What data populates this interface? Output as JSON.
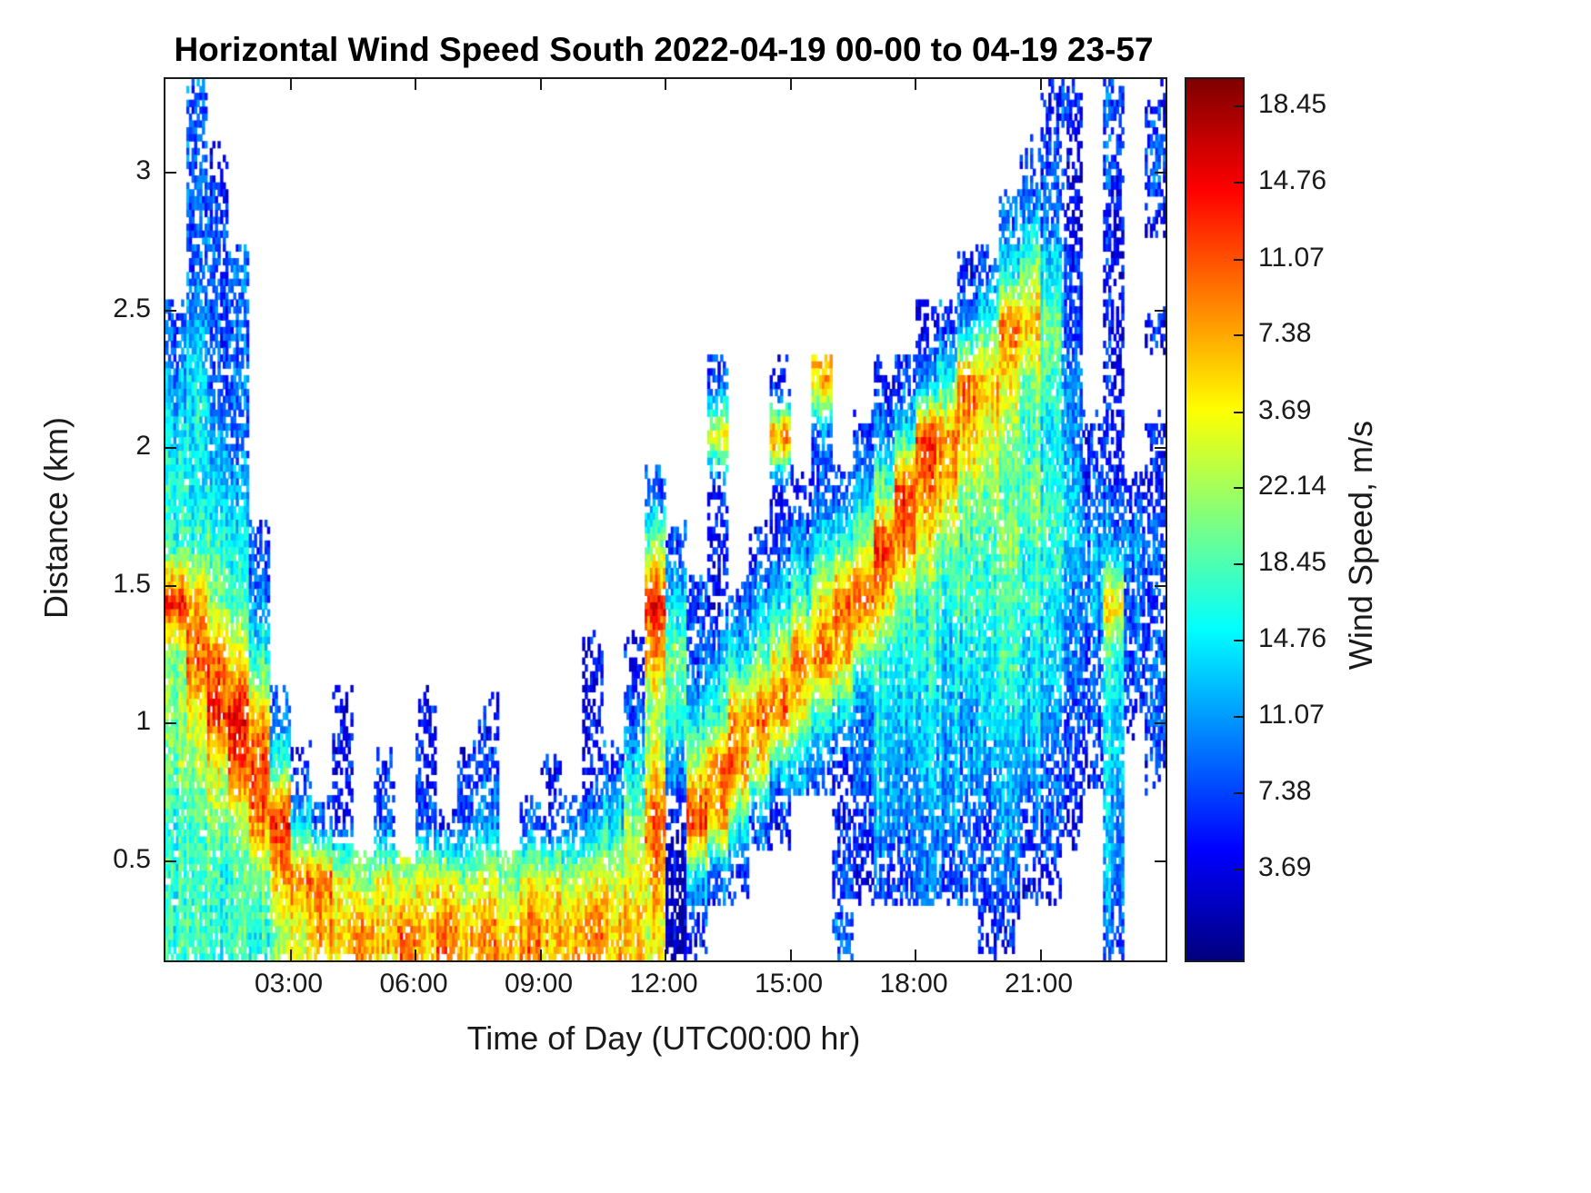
{
  "title": "Horizontal Wind Speed South 2022-04-19 00-00 to 04-19 23-57",
  "axes": {
    "xlabel": "Time of Day (UTC00:00 hr)",
    "ylabel": "Distance (km)",
    "x_range_hours": [
      0,
      24
    ],
    "y_range_km": [
      0.14,
      3.34
    ],
    "x_ticks": [
      {
        "label": "03:00",
        "hour": 3
      },
      {
        "label": "06:00",
        "hour": 6
      },
      {
        "label": "09:00",
        "hour": 9
      },
      {
        "label": "12:00",
        "hour": 12
      },
      {
        "label": "15:00",
        "hour": 15
      },
      {
        "label": "18:00",
        "hour": 18
      },
      {
        "label": "21:00",
        "hour": 21
      }
    ],
    "y_ticks": [
      {
        "label": "3",
        "km": 3
      },
      {
        "label": "2.5",
        "km": 2.5
      },
      {
        "label": "2",
        "km": 2
      },
      {
        "label": "1.5",
        "km": 1.5
      },
      {
        "label": "1",
        "km": 1
      },
      {
        "label": "0.5",
        "km": 0.5
      }
    ]
  },
  "colorbar": {
    "label": "Wind Speed, m/s",
    "colormap": "jet",
    "ticks_top_to_bottom": [
      {
        "label": "18.45",
        "frac_from_bottom": 0.969
      },
      {
        "label": "14.76",
        "frac_from_bottom": 0.882
      },
      {
        "label": "11.07",
        "frac_from_bottom": 0.795
      },
      {
        "label": "7.38",
        "frac_from_bottom": 0.709
      },
      {
        "label": "3.69",
        "frac_from_bottom": 0.622
      },
      {
        "label": "22.14",
        "frac_from_bottom": 0.536
      },
      {
        "label": "18.45",
        "frac_from_bottom": 0.449
      },
      {
        "label": "14.76",
        "frac_from_bottom": 0.363
      },
      {
        "label": "11.07",
        "frac_from_bottom": 0.276
      },
      {
        "label": "7.38",
        "frac_from_bottom": 0.19
      },
      {
        "label": "3.69",
        "frac_from_bottom": 0.103
      }
    ]
  },
  "chart_data": {
    "type": "heatmap",
    "title": "Horizontal Wind Speed South 2022-04-19 00-00 to 04-19 23-57",
    "xlabel": "Time of Day (UTC00:00 hr)",
    "ylabel": "Distance (km)",
    "x_tick_labels": [
      "03:00",
      "06:00",
      "09:00",
      "12:00",
      "15:00",
      "18:00",
      "21:00"
    ],
    "y_tick_values": [
      0.5,
      1,
      1.5,
      2,
      2.5,
      3
    ],
    "x_range_hours": [
      0,
      24
    ],
    "y_range_km": [
      0.14,
      3.34
    ],
    "colormap": "jet",
    "no_data_color": "#ffffff",
    "colorbar_label": "Wind Speed, m/s",
    "colorbar_tick_labels_top_to_bottom": [
      "18.45",
      "14.76",
      "11.07",
      "7.38",
      "3.69",
      "22.14",
      "18.45",
      "14.76",
      "11.07",
      "7.38",
      "3.69"
    ],
    "grid": {
      "cols": 48,
      "rows": 16,
      "col_duration_min": 30,
      "row_height_km": 0.2,
      "value_map": {
        "1": 0.05,
        "2": 0.13,
        "3": 0.2,
        "4": 0.28,
        "5": 0.35,
        "6": 0.42,
        "7": 0.5,
        "8": 0.6,
        "9": 0.68,
        "a": 0.76,
        "b": 0.85,
        "c": 0.93
      },
      "dropout_map": {
        "1": 0.18,
        "2": 0.52,
        "3": 0.32,
        "4": 0.14,
        "default": 0.07
      },
      "rows_top_to_bottom": [
        ".3........................................23.3.2",
        ".32......................................232.3.3",
        ".33.....................................3432.2.2",
        ".333..................................235753.2..",
        "3433................................2346a973.2.2",
        "4533......................3..2.9..2346a98764.2..",
        "5543......................8..a.3.346ba98765422.2",
        "6554...................3..2..223357ba97767653322",
        "66653..................73.2.234568ba876676654443",
        "b9764..................b53234568ab97666666544932",
        "7aa86...............2.29734568aa9766655565543633",
        "78bb93..2...2..2....2.376569aa865455554555433523",
        "778ab62.2.2.2.23..2.235848aa854324545444443325.2",
        "6677ab532.3.3234.323457a2b9632..234444334332.4..",
        "666679aa87878878788788891532....32334333322..4..",
        "666667899a9a9a9a9a99a99812......3......22....3.."
      ]
    }
  }
}
